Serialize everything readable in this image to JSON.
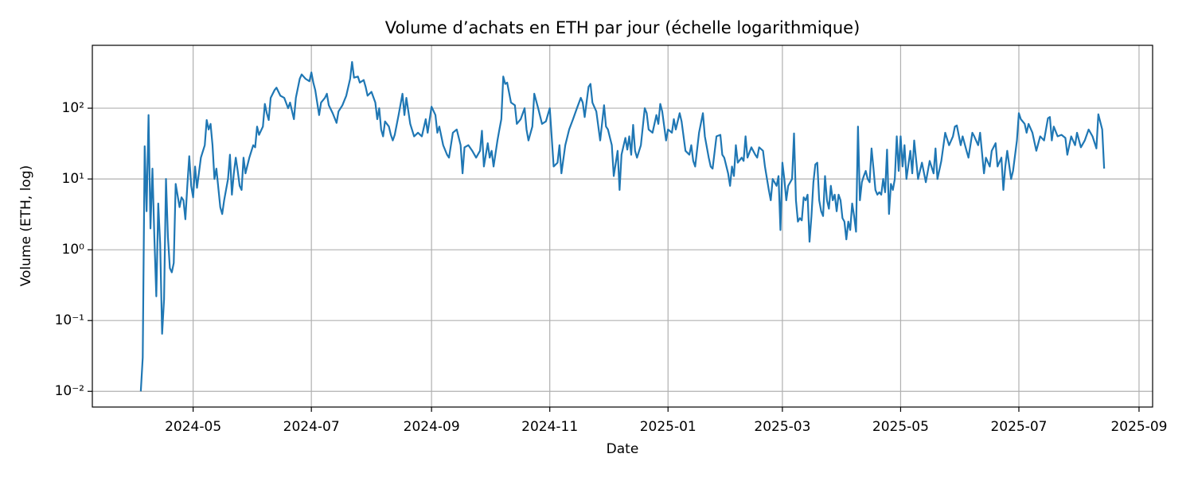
{
  "chart_data": {
    "type": "line",
    "title": "Volume d’achats en ETH par jour (échelle logarithmique)",
    "x_label": "Date",
    "y_label": "Volume (ETH, log)",
    "color": "#1f77b4",
    "log_y": true,
    "grid": true,
    "xlim": [
      "2024-03-10",
      "2025-09-08"
    ],
    "xticks": [
      "2024-05",
      "2024-07",
      "2024-09",
      "2024-11",
      "2025-01",
      "2025-03",
      "2025-05",
      "2025-07",
      "2025-09"
    ],
    "ylim": [
      0.006,
      773
    ],
    "yticks": [
      {
        "value": 0.01,
        "label": "10⁻²"
      },
      {
        "value": 0.1,
        "label": "10⁻¹"
      },
      {
        "value": 1,
        "label": "10⁰"
      },
      {
        "value": 10,
        "label": "10¹"
      },
      {
        "value": 100,
        "label": "10²"
      }
    ],
    "x": [
      "2024-04-04",
      "2024-04-05",
      "2024-04-06",
      "2024-04-07",
      "2024-04-08",
      "2024-04-09",
      "2024-04-10",
      "2024-04-11",
      "2024-04-12",
      "2024-04-13",
      "2024-04-14",
      "2024-04-15",
      "2024-04-16",
      "2024-04-17",
      "2024-04-18",
      "2024-04-19",
      "2024-04-20",
      "2024-04-21",
      "2024-04-22",
      "2024-04-24",
      "2024-04-25",
      "2024-04-26",
      "2024-04-27",
      "2024-04-28",
      "2024-04-29",
      "2024-04-30",
      "2024-05-01",
      "2024-05-02",
      "2024-05-03",
      "2024-05-05",
      "2024-05-07",
      "2024-05-08",
      "2024-05-09",
      "2024-05-10",
      "2024-05-11",
      "2024-05-12",
      "2024-05-13",
      "2024-05-15",
      "2024-05-16",
      "2024-05-17",
      "2024-05-19",
      "2024-05-20",
      "2024-05-21",
      "2024-05-22",
      "2024-05-23",
      "2024-05-24",
      "2024-05-25",
      "2024-05-26",
      "2024-05-27",
      "2024-05-28",
      "2024-05-30",
      "2024-06-01",
      "2024-06-02",
      "2024-06-03",
      "2024-06-04",
      "2024-06-06",
      "2024-06-07",
      "2024-06-08",
      "2024-06-09",
      "2024-06-10",
      "2024-06-12",
      "2024-06-13",
      "2024-06-15",
      "2024-06-17",
      "2024-06-19",
      "2024-06-20",
      "2024-06-22",
      "2024-06-23",
      "2024-06-25",
      "2024-06-26",
      "2024-06-28",
      "2024-06-30",
      "2024-07-01",
      "2024-07-02",
      "2024-07-03",
      "2024-07-05",
      "2024-07-06",
      "2024-07-08",
      "2024-07-09",
      "2024-07-10",
      "2024-07-12",
      "2024-07-14",
      "2024-07-15",
      "2024-07-17",
      "2024-07-19",
      "2024-07-21",
      "2024-07-22",
      "2024-07-23",
      "2024-07-25",
      "2024-07-26",
      "2024-07-28",
      "2024-07-29",
      "2024-07-30",
      "2024-08-01",
      "2024-08-03",
      "2024-08-04",
      "2024-08-05",
      "2024-08-06",
      "2024-08-07",
      "2024-08-08",
      "2024-08-10",
      "2024-08-11",
      "2024-08-12",
      "2024-08-13",
      "2024-08-15",
      "2024-08-17",
      "2024-08-18",
      "2024-08-19",
      "2024-08-21",
      "2024-08-23",
      "2024-08-25",
      "2024-08-27",
      "2024-08-29",
      "2024-08-30",
      "2024-09-01",
      "2024-09-03",
      "2024-09-04",
      "2024-09-05",
      "2024-09-07",
      "2024-09-09",
      "2024-09-10",
      "2024-09-12",
      "2024-09-14",
      "2024-09-16",
      "2024-09-17",
      "2024-09-18",
      "2024-09-20",
      "2024-09-22",
      "2024-09-24",
      "2024-09-26",
      "2024-09-27",
      "2024-09-28",
      "2024-09-30",
      "2024-10-01",
      "2024-10-02",
      "2024-10-03",
      "2024-10-05",
      "2024-10-06",
      "2024-10-07",
      "2024-10-08",
      "2024-10-09",
      "2024-10-10",
      "2024-10-12",
      "2024-10-14",
      "2024-10-15",
      "2024-10-17",
      "2024-10-19",
      "2024-10-20",
      "2024-10-21",
      "2024-10-23",
      "2024-10-24",
      "2024-10-26",
      "2024-10-28",
      "2024-10-30",
      "2024-11-01",
      "2024-11-03",
      "2024-11-05",
      "2024-11-06",
      "2024-11-07",
      "2024-11-09",
      "2024-11-11",
      "2024-11-13",
      "2024-11-15",
      "2024-11-17",
      "2024-11-18",
      "2024-11-19",
      "2024-11-21",
      "2024-11-22",
      "2024-11-23",
      "2024-11-25",
      "2024-11-27",
      "2024-11-29",
      "2024-11-30",
      "2024-12-01",
      "2024-12-03",
      "2024-12-04",
      "2024-12-06",
      "2024-12-07",
      "2024-12-08",
      "2024-12-10",
      "2024-12-11",
      "2024-12-12",
      "2024-12-13",
      "2024-12-14",
      "2024-12-15",
      "2024-12-16",
      "2024-12-18",
      "2024-12-20",
      "2024-12-21",
      "2024-12-22",
      "2024-12-24",
      "2024-12-26",
      "2024-12-27",
      "2024-12-28",
      "2024-12-29",
      "2024-12-31",
      "2025-01-01",
      "2025-01-03",
      "2025-01-04",
      "2025-01-05",
      "2025-01-07",
      "2025-01-08",
      "2025-01-10",
      "2025-01-12",
      "2025-01-13",
      "2025-01-14",
      "2025-01-15",
      "2025-01-17",
      "2025-01-19",
      "2025-01-20",
      "2025-01-22",
      "2025-01-23",
      "2025-01-24",
      "2025-01-26",
      "2025-01-28",
      "2025-01-29",
      "2025-01-30",
      "2025-02-01",
      "2025-02-02",
      "2025-02-03",
      "2025-02-04",
      "2025-02-05",
      "2025-02-06",
      "2025-02-08",
      "2025-02-09",
      "2025-02-10",
      "2025-02-11",
      "2025-02-13",
      "2025-02-15",
      "2025-02-16",
      "2025-02-17",
      "2025-02-19",
      "2025-02-20",
      "2025-02-22",
      "2025-02-23",
      "2025-02-24",
      "2025-02-26",
      "2025-02-27",
      "2025-02-28",
      "2025-03-01",
      "2025-03-02",
      "2025-03-03",
      "2025-03-04",
      "2025-03-06",
      "2025-03-07",
      "2025-03-08",
      "2025-03-09",
      "2025-03-10",
      "2025-03-11",
      "2025-03-12",
      "2025-03-13",
      "2025-03-14",
      "2025-03-15",
      "2025-03-16",
      "2025-03-17",
      "2025-03-18",
      "2025-03-19",
      "2025-03-20",
      "2025-03-21",
      "2025-03-22",
      "2025-03-23",
      "2025-03-24",
      "2025-03-25",
      "2025-03-26",
      "2025-03-27",
      "2025-03-28",
      "2025-03-29",
      "2025-03-30",
      "2025-03-31",
      "2025-04-01",
      "2025-04-02",
      "2025-04-03",
      "2025-04-04",
      "2025-04-05",
      "2025-04-06",
      "2025-04-07",
      "2025-04-08",
      "2025-04-09",
      "2025-04-10",
      "2025-04-11",
      "2025-04-12",
      "2025-04-13",
      "2025-04-14",
      "2025-04-15",
      "2025-04-16",
      "2025-04-17",
      "2025-04-18",
      "2025-04-19",
      "2025-04-20",
      "2025-04-21",
      "2025-04-22",
      "2025-04-23",
      "2025-04-24",
      "2025-04-25",
      "2025-04-26",
      "2025-04-27",
      "2025-04-28",
      "2025-04-29",
      "2025-04-30",
      "2025-05-01",
      "2025-05-02",
      "2025-05-03",
      "2025-05-04",
      "2025-05-06",
      "2025-05-07",
      "2025-05-08",
      "2025-05-10",
      "2025-05-12",
      "2025-05-14",
      "2025-05-16",
      "2025-05-18",
      "2025-05-19",
      "2025-05-20",
      "2025-05-22",
      "2025-05-24",
      "2025-05-26",
      "2025-05-28",
      "2025-05-29",
      "2025-05-30",
      "2025-06-01",
      "2025-06-02",
      "2025-06-04",
      "2025-06-05",
      "2025-06-07",
      "2025-06-08",
      "2025-06-10",
      "2025-06-11",
      "2025-06-13",
      "2025-06-14",
      "2025-06-16",
      "2025-06-17",
      "2025-06-19",
      "2025-06-20",
      "2025-06-22",
      "2025-06-23",
      "2025-06-24",
      "2025-06-25",
      "2025-06-27",
      "2025-06-28",
      "2025-06-30",
      "2025-07-01",
      "2025-07-02",
      "2025-07-04",
      "2025-07-05",
      "2025-07-06",
      "2025-07-08",
      "2025-07-10",
      "2025-07-12",
      "2025-07-14",
      "2025-07-16",
      "2025-07-17",
      "2025-07-18",
      "2025-07-19",
      "2025-07-21",
      "2025-07-23",
      "2025-07-25",
      "2025-07-26",
      "2025-07-28",
      "2025-07-30",
      "2025-07-31",
      "2025-08-02",
      "2025-08-04",
      "2025-08-06",
      "2025-08-08",
      "2025-08-10",
      "2025-08-11",
      "2025-08-13",
      "2025-08-14"
    ],
    "values": [
      0.01,
      0.03,
      29,
      3.5,
      80,
      2,
      14,
      1.5,
      0.22,
      4.5,
      1.2,
      0.065,
      0.2,
      10,
      1.5,
      0.55,
      0.48,
      0.65,
      8.5,
      4,
      5.5,
      5,
      2.7,
      8,
      21,
      8,
      5.5,
      15,
      7.5,
      20,
      30,
      68,
      50,
      60,
      30,
      10,
      14,
      4,
      3.2,
      5,
      10,
      22,
      6,
      12,
      20,
      13,
      8,
      7,
      20,
      12,
      20,
      30,
      28,
      55,
      42,
      55,
      115,
      85,
      68,
      140,
      180,
      195,
      150,
      140,
      100,
      120,
      70,
      140,
      260,
      300,
      260,
      240,
      320,
      230,
      180,
      80,
      120,
      140,
      160,
      110,
      85,
      62,
      90,
      110,
      150,
      260,
      450,
      270,
      280,
      230,
      250,
      200,
      150,
      170,
      120,
      70,
      100,
      50,
      40,
      65,
      55,
      42,
      35,
      42,
      80,
      160,
      80,
      140,
      60,
      40,
      45,
      40,
      70,
      45,
      105,
      80,
      45,
      55,
      30,
      22,
      20,
      45,
      50,
      30,
      12,
      28,
      30,
      25,
      20,
      25,
      48,
      15,
      32,
      20,
      25,
      15,
      35,
      50,
      70,
      280,
      220,
      230,
      120,
      110,
      60,
      70,
      100,
      50,
      35,
      55,
      160,
      100,
      60,
      65,
      100,
      15,
      17,
      30,
      12,
      30,
      50,
      70,
      100,
      140,
      120,
      75,
      200,
      220,
      120,
      90,
      35,
      110,
      55,
      50,
      30,
      11,
      25,
      7,
      22,
      38,
      26,
      40,
      22,
      58,
      25,
      20,
      30,
      100,
      85,
      50,
      45,
      80,
      60,
      115,
      90,
      35,
      50,
      45,
      70,
      50,
      85,
      65,
      25,
      22,
      30,
      18,
      15,
      45,
      85,
      40,
      20,
      15,
      14,
      40,
      42,
      22,
      20,
      12,
      8,
      15,
      11,
      30,
      17,
      20,
      18,
      40,
      20,
      28,
      22,
      20,
      28,
      25,
      15,
      7,
      5,
      10,
      8,
      11,
      1.9,
      17,
      10,
      5,
      8,
      10,
      44,
      5,
      2.5,
      2.8,
      2.6,
      5.5,
      5,
      6,
      1.3,
      3,
      9,
      16,
      17,
      5,
      3.5,
      3,
      11,
      5,
      3.8,
      8,
      5,
      6,
      3.5,
      6,
      5,
      2.8,
      2.5,
      1.4,
      2.5,
      1.9,
      4.5,
      3,
      1.8,
      55,
      5,
      9,
      11,
      13,
      10,
      9,
      27,
      14,
      7,
      6,
      6.5,
      6,
      10,
      6.5,
      26,
      3.2,
      8.5,
      7,
      10,
      40,
      13,
      40,
      15,
      30,
      10,
      25,
      12,
      35,
      10,
      17,
      9,
      18,
      12,
      27,
      10,
      18,
      45,
      30,
      40,
      55,
      57,
      30,
      40,
      25,
      20,
      45,
      40,
      30,
      45,
      12,
      20,
      15,
      25,
      32,
      15,
      20,
      7,
      15,
      25,
      10,
      13,
      35,
      85,
      70,
      60,
      45,
      60,
      45,
      25,
      40,
      35,
      72,
      75,
      35,
      55,
      40,
      42,
      38,
      22,
      40,
      30,
      45,
      28,
      35,
      50,
      40,
      27,
      82,
      50,
      14
    ]
  }
}
